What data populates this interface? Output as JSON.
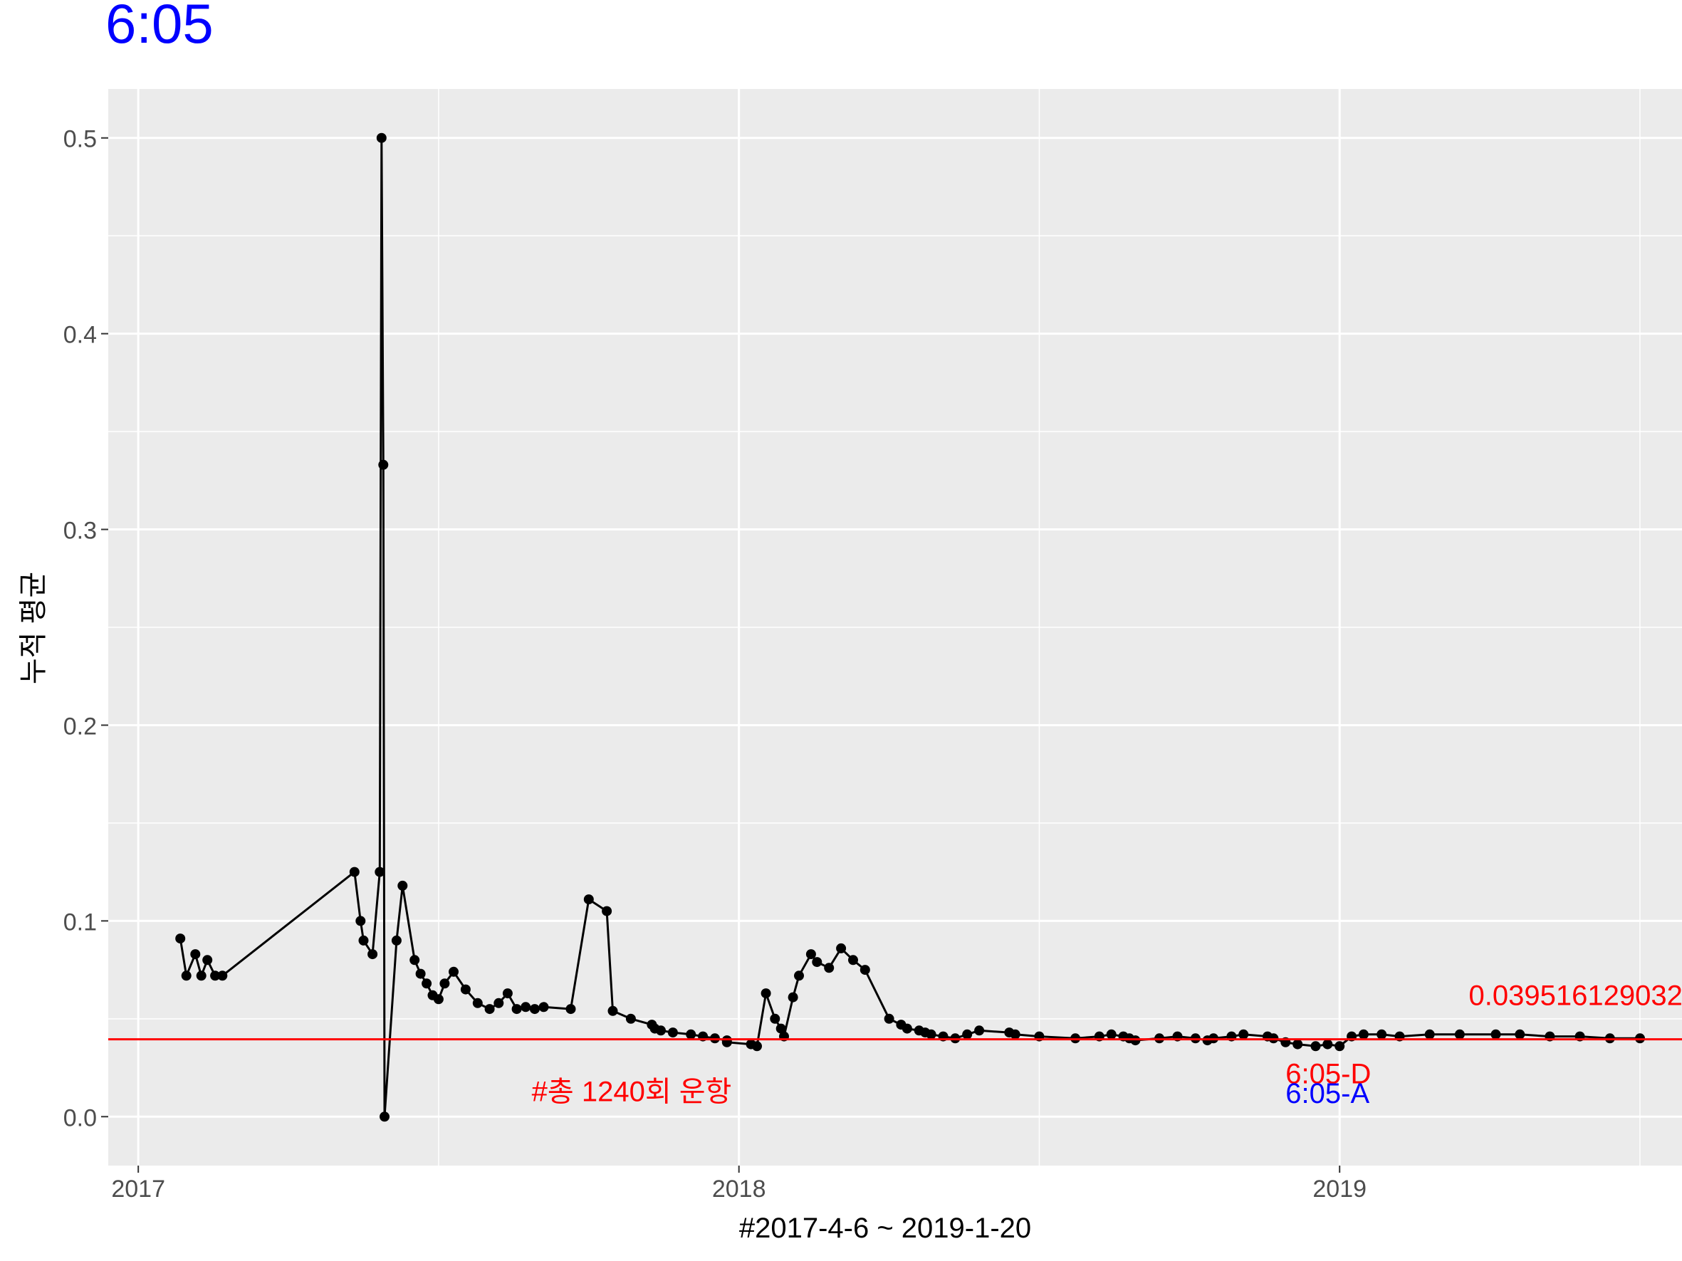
{
  "chart_data": {
    "type": "line",
    "title": "6:05",
    "xlabel": "#2017-4-6 ~ 2019-1-20",
    "ylabel": "누적 평균",
    "ylim": [
      -0.025,
      0.525
    ],
    "xlim": [
      2016.95,
      2019.57
    ],
    "x_ticks": [
      {
        "value": 2017,
        "label": "2017"
      },
      {
        "value": 2018,
        "label": "2018"
      },
      {
        "value": 2019,
        "label": "2019"
      }
    ],
    "y_ticks": [
      {
        "value": 0.0,
        "label": "0.0"
      },
      {
        "value": 0.1,
        "label": "0.1"
      },
      {
        "value": 0.2,
        "label": "0.2"
      },
      {
        "value": 0.3,
        "label": "0.3"
      },
      {
        "value": 0.4,
        "label": "0.4"
      },
      {
        "value": 0.5,
        "label": "0.5"
      }
    ],
    "grid": true,
    "background": "#EBEBEB",
    "series": [
      {
        "color": "#000000",
        "x": [
          2017.07,
          2017.08,
          2017.095,
          2017.105,
          2017.115,
          2017.128,
          2017.14,
          2017.36,
          2017.37,
          2017.375,
          2017.39,
          2017.402,
          2017.405,
          2017.408,
          2017.41,
          2017.43,
          2017.44,
          2017.46,
          2017.47,
          2017.48,
          2017.49,
          2017.5,
          2017.51,
          2017.525,
          2017.545,
          2017.565,
          2017.585,
          2017.6,
          2017.615,
          2017.63,
          2017.645,
          2017.66,
          2017.675,
          2017.72,
          2017.75,
          2017.78,
          2017.79,
          2017.82,
          2017.855,
          2017.86,
          2017.87,
          2017.89,
          2017.92,
          2017.94,
          2017.96,
          2017.98,
          2017.98,
          2018.02,
          2018.03,
          2018.045,
          2018.06,
          2018.07,
          2018.075,
          2018.09,
          2018.1,
          2018.12,
          2018.13,
          2018.15,
          2018.17,
          2018.19,
          2018.21,
          2018.25,
          2018.27,
          2018.28,
          2018.3,
          2018.31,
          2018.32,
          2018.34,
          2018.36,
          2018.38,
          2018.4,
          2018.45,
          2018.46,
          2018.5,
          2018.56,
          2018.6,
          2018.62,
          2018.64,
          2018.65,
          2018.66,
          2018.7,
          2018.73,
          2018.76,
          2018.78,
          2018.79,
          2018.82,
          2018.84,
          2018.88,
          2018.89,
          2018.91,
          2018.93,
          2018.96,
          2018.98,
          2019.0,
          2019.02,
          2019.04,
          2019.07,
          2019.1,
          2019.15,
          2019.2,
          2019.26,
          2019.3,
          2019.35,
          2019.4,
          2019.45,
          2019.5
        ],
        "y": [
          0.091,
          0.072,
          0.083,
          0.072,
          0.08,
          0.072,
          0.072,
          0.125,
          0.1,
          0.09,
          0.083,
          0.125,
          0.5,
          0.333,
          0.0,
          0.09,
          0.118,
          0.08,
          0.073,
          0.068,
          0.062,
          0.06,
          0.068,
          0.074,
          0.065,
          0.058,
          0.055,
          0.058,
          0.063,
          0.055,
          0.056,
          0.055,
          0.056,
          0.055,
          0.111,
          0.105,
          0.054,
          0.05,
          0.047,
          0.045,
          0.044,
          0.043,
          0.042,
          0.041,
          0.04,
          0.039,
          0.038,
          0.037,
          0.036,
          0.063,
          0.05,
          0.045,
          0.041,
          0.061,
          0.072,
          0.083,
          0.079,
          0.076,
          0.086,
          0.08,
          0.075,
          0.05,
          0.047,
          0.045,
          0.044,
          0.043,
          0.042,
          0.041,
          0.04,
          0.042,
          0.044,
          0.043,
          0.042,
          0.041,
          0.04,
          0.041,
          0.042,
          0.041,
          0.04,
          0.039,
          0.04,
          0.041,
          0.04,
          0.039,
          0.04,
          0.041,
          0.042,
          0.041,
          0.04,
          0.038,
          0.037,
          0.036,
          0.037,
          0.036,
          0.041,
          0.042,
          0.042,
          0.041,
          0.042,
          0.042,
          0.042,
          0.042,
          0.041,
          0.041,
          0.04,
          0.04
        ]
      }
    ],
    "reference_line": {
      "y": 0.0395161290322581,
      "color": "#FF0000"
    },
    "annotations": [
      {
        "text": "0.03951612903226",
        "x": 2019.215,
        "y": 0.057,
        "color": "#FF0000",
        "align": "start"
      },
      {
        "text": "#총 1240회 운항",
        "x": 2017.655,
        "y": 0.008,
        "color": "#FF0000",
        "align": "start"
      },
      {
        "text": "6:05-D",
        "x": 2018.91,
        "y": 0.017,
        "color": "#FF0000",
        "align": "start"
      },
      {
        "text": "6:05-A",
        "x": 2018.91,
        "y": 0.007,
        "color": "#0000FF",
        "align": "start"
      }
    ],
    "title_color": "#0000FF"
  }
}
